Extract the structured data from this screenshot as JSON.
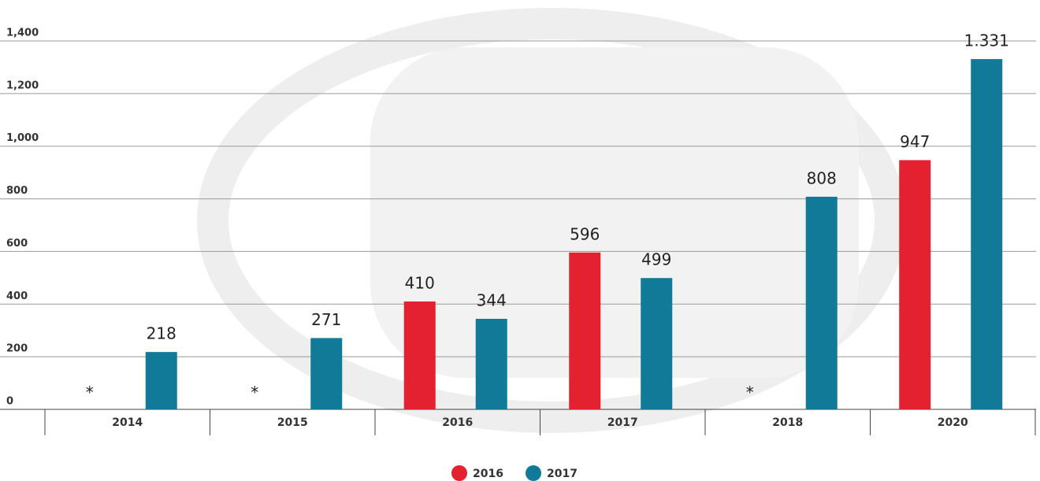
{
  "chart_data": {
    "type": "bar",
    "categories": [
      "2014",
      "2015",
      "2016",
      "2017",
      "2018",
      "2020"
    ],
    "series": [
      {
        "name": "2016",
        "color": "#e32131",
        "values": [
          null,
          null,
          410,
          596,
          null,
          947
        ]
      },
      {
        "name": "2017",
        "color": "#127a99",
        "values": [
          218,
          271,
          344,
          499,
          808,
          1331
        ],
        "value_labels": [
          "218",
          "271",
          "344",
          "499",
          "808",
          "1.331"
        ]
      }
    ],
    "null_label": "*",
    "ylim": [
      0,
      1400
    ],
    "yticks": [
      0,
      200,
      400,
      600,
      800,
      {
        "value": 1000,
        "label": "1,000"
      },
      {
        "value": 1200,
        "label": "1,200"
      },
      {
        "value": 1400,
        "label": "1,400"
      }
    ],
    "grid": true
  }
}
